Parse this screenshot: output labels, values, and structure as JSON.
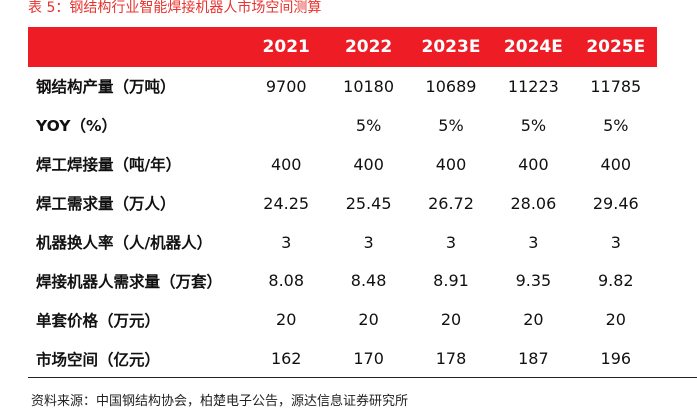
{
  "caption": "表 5：钢结构行业智能焊接机器人市场空间测算",
  "table": {
    "headers": [
      "",
      "2021",
      "2022",
      "2023E",
      "2024E",
      "2025E"
    ],
    "rows": [
      {
        "label": "钢结构产量（万吨）",
        "values": [
          "9700",
          "10180",
          "10689",
          "11223",
          "11785"
        ]
      },
      {
        "label": "YOY（%）",
        "values": [
          "",
          "5%",
          "5%",
          "5%",
          "5%"
        ]
      },
      {
        "label": "焊工焊接量（吨/年）",
        "values": [
          "400",
          "400",
          "400",
          "400",
          "400"
        ]
      },
      {
        "label": "焊工需求量（万人）",
        "values": [
          "24.25",
          "25.45",
          "26.72",
          "28.06",
          "29.46"
        ]
      },
      {
        "label": "机器换人率（人/机器人）",
        "values": [
          "3",
          "3",
          "3",
          "3",
          "3"
        ]
      },
      {
        "label": "焊接机器人需求量（万套）",
        "values": [
          "8.08",
          "8.48",
          "8.91",
          "9.35",
          "9.82"
        ]
      },
      {
        "label": "单套价格（万元）",
        "values": [
          "20",
          "20",
          "20",
          "20",
          "20"
        ]
      },
      {
        "label": "市场空间（亿元）",
        "values": [
          "162",
          "170",
          "178",
          "187",
          "196"
        ]
      }
    ]
  },
  "source": "资料来源：中国钢结构协会，柏楚电子公告，源达信息证券研究所",
  "colors": {
    "header_bg": "#ee1c25",
    "caption_text": "#e8332e"
  }
}
